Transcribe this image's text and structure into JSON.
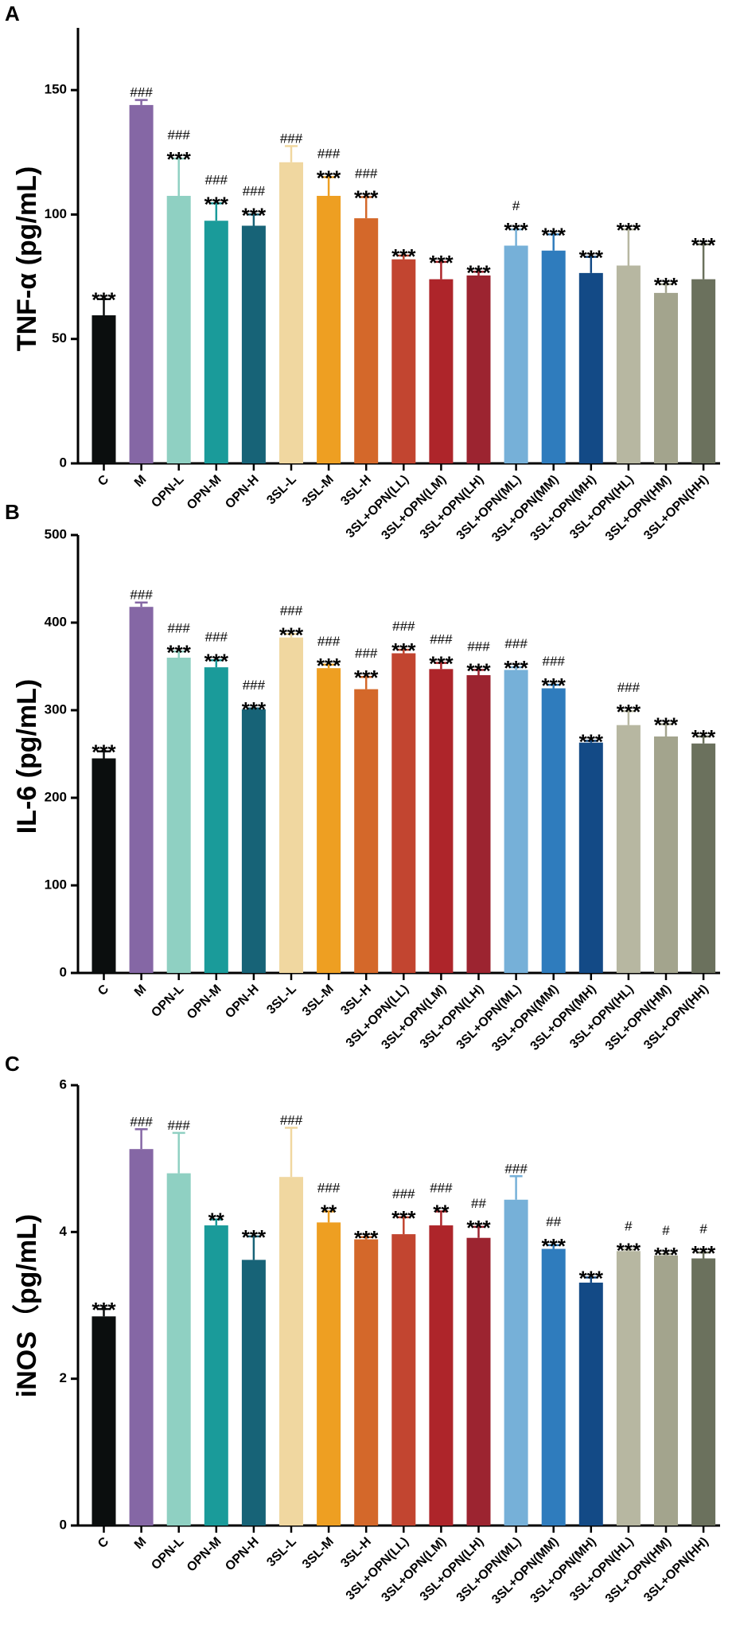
{
  "chart_data": [
    {
      "type": "bar",
      "panel_label": "A",
      "ylabel": "TNF-α (pg/mL)",
      "ylim": [
        0,
        175
      ],
      "yticks": [
        0,
        50,
        100,
        150
      ],
      "ytick_labels": [
        "0",
        "50",
        "100",
        "150"
      ],
      "categories": [
        "C",
        "M",
        "OPN-L",
        "OPN-M",
        "OPN-H",
        "3SL-L",
        "3SL-M",
        "3SL-H",
        "3SL+OPN(LL)",
        "3SL+OPN(LM)",
        "3SL+OPN(LH)",
        "3SL+OPN(ML)",
        "3SL+OPN(MM)",
        "3SL+OPN(MH)",
        "3SL+OPN(HL)",
        "3SL+OPN(HM)",
        "3SL+OPN(HH)"
      ],
      "values": [
        59.5,
        144,
        107.5,
        97.5,
        95.5,
        121,
        107.5,
        98.5,
        82,
        74,
        75.5,
        87.5,
        85.5,
        76.5,
        79.5,
        68.5,
        74
      ],
      "errors": [
        6.5,
        2,
        15,
        7,
        4.5,
        6.5,
        7.5,
        8.5,
        1.5,
        7,
        1.5,
        6.5,
        6.5,
        6.5,
        14.5,
        3.5,
        14
      ],
      "stars": [
        "***",
        "",
        "***",
        "***",
        "***",
        "",
        "***",
        "***",
        "***",
        "***",
        "***",
        "***",
        "***",
        "***",
        "***",
        "***",
        "***"
      ],
      "hashes": [
        "",
        "###",
        "###",
        "###",
        "###",
        "###",
        "###",
        "###",
        "",
        "",
        "",
        "#",
        "",
        "",
        "",
        "",
        ""
      ]
    },
    {
      "type": "bar",
      "panel_label": "B",
      "ylabel": "IL-6 (pg/mL)",
      "ylim": [
        0,
        500
      ],
      "yticks": [
        0,
        100,
        200,
        300,
        400,
        500
      ],
      "ytick_labels": [
        "0",
        "100",
        "200",
        "300",
        "400",
        "500"
      ],
      "categories": [
        "C",
        "M",
        "OPN-L",
        "OPN-M",
        "OPN-H",
        "3SL-L",
        "3SL-M",
        "3SL-H",
        "3SL+OPN(LL)",
        "3SL+OPN(LM)",
        "3SL+OPN(LH)",
        "3SL+OPN(ML)",
        "3SL+OPN(MM)",
        "3SL+OPN(MH)",
        "3SL+OPN(HL)",
        "3SL+OPN(HM)",
        "3SL+OPN(HH)"
      ],
      "values": [
        245,
        418,
        360,
        349,
        301,
        383,
        348,
        324,
        365,
        347,
        340,
        346,
        325,
        263,
        283,
        270,
        262
      ],
      "errors": [
        8,
        5,
        7,
        8,
        1,
        4,
        4,
        14,
        4,
        7,
        6,
        3,
        4,
        2,
        16,
        14,
        8
      ],
      "stars": [
        "***",
        "",
        "***",
        "***",
        "***",
        "***",
        "***",
        "***",
        "***",
        "***",
        "***",
        "***",
        "***",
        "***",
        "***",
        "***",
        "***"
      ],
      "hashes": [
        "",
        "###",
        "###",
        "###",
        "###",
        "###",
        "###",
        "###",
        "###",
        "###",
        "###",
        "###",
        "###",
        "",
        "###",
        "",
        ""
      ]
    },
    {
      "type": "bar",
      "panel_label": "C",
      "ylabel": "iNOS（pg/mL)",
      "ylim": [
        0,
        6
      ],
      "yticks": [
        0,
        2,
        4,
        6
      ],
      "ytick_labels": [
        "0",
        "2",
        "4",
        "6"
      ],
      "categories": [
        "C",
        "M",
        "OPN-L",
        "OPN-M",
        "OPN-H",
        "3SL-L",
        "3SL-M",
        "3SL-H",
        "3SL+OPN(LL)",
        "3SL+OPN(LM)",
        "3SL+OPN(LH)",
        "3SL+OPN(ML)",
        "3SL+OPN(MM)",
        "3SL+OPN(MH)",
        "3SL+OPN(HL)",
        "3SL+OPN(HM)",
        "3SL+OPN(HH)"
      ],
      "values": [
        2.85,
        5.13,
        4.8,
        4.09,
        3.62,
        4.75,
        4.13,
        3.9,
        3.97,
        4.09,
        3.92,
        4.44,
        3.77,
        3.31,
        3.74,
        3.68,
        3.64
      ],
      "errors": [
        0.1,
        0.27,
        0.55,
        0.08,
        0.32,
        0.67,
        0.15,
        0.03,
        0.23,
        0.19,
        0.15,
        0.32,
        0.05,
        0.07,
        0.02,
        0.02,
        0.08
      ],
      "stars": [
        "***",
        "",
        "",
        "**",
        "***",
        "",
        "**",
        "***",
        "***",
        "**",
        "***",
        "",
        "***",
        "***",
        "***",
        "***",
        "***"
      ],
      "hashes": [
        "",
        "###",
        "###",
        "",
        "",
        "###",
        "###",
        "",
        "###",
        "###",
        "##",
        "###",
        "##",
        "",
        "#",
        "#",
        "#"
      ]
    }
  ],
  "colors": [
    "#0b0e0e",
    "#8567a5",
    "#8fd0c2",
    "#1a9b9a",
    "#176377",
    "#f0d7a0",
    "#ee9f22",
    "#d4682a",
    "#c24530",
    "#ae252a",
    "#9c2430",
    "#76b0d8",
    "#2f7cbd",
    "#134a86",
    "#b7b7a1",
    "#a3a48d",
    "#6b715d"
  ]
}
